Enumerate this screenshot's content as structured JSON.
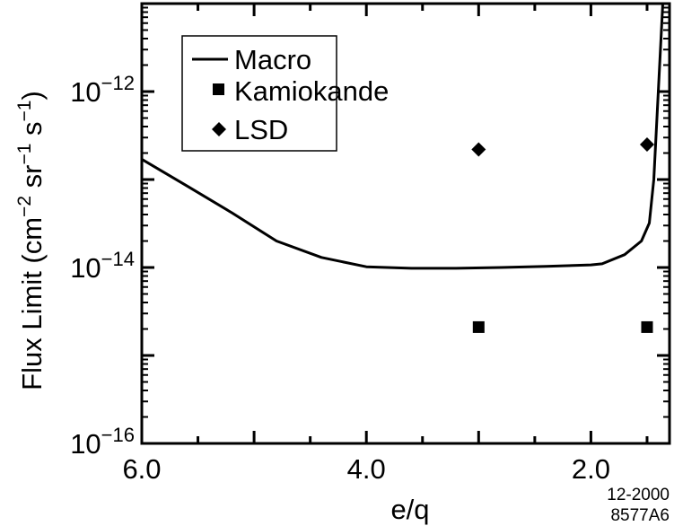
{
  "chart_data": {
    "type": "line",
    "title": "",
    "xlabel": "e/q",
    "ylabel": {
      "prefix": "Flux Limit  (cm",
      "exp1": "−2",
      "mid1": " sr",
      "exp2": "−1",
      "mid2": " s",
      "exp3": "−1",
      "suffix": ")"
    },
    "xlim": [
      6.0,
      1.3
    ],
    "x_reversed": true,
    "ylim": [
      1e-16,
      1e-11
    ],
    "yscale": "log",
    "x_ticks": [
      {
        "value": 6.0,
        "label": "6.0"
      },
      {
        "value": 4.0,
        "label": "4.0"
      },
      {
        "value": 2.0,
        "label": "2.0"
      }
    ],
    "y_ticks": [
      {
        "value": 1e-16,
        "base": "10",
        "exp": "−16"
      },
      {
        "value": 1e-14,
        "base": "10",
        "exp": "−14"
      },
      {
        "value": 1e-12,
        "base": "10",
        "exp": "−12"
      }
    ],
    "legend": {
      "position": "top-left",
      "entries": [
        {
          "label": "Macro",
          "marker": "line"
        },
        {
          "label": "Kamiokande",
          "marker": "square"
        },
        {
          "label": "LSD",
          "marker": "diamond"
        }
      ]
    },
    "series": [
      {
        "name": "Macro",
        "kind": "line",
        "points": [
          [
            6.0,
            1.7e-13
          ],
          [
            5.6,
            8.5e-14
          ],
          [
            5.2,
            4.2e-14
          ],
          [
            4.8,
            2e-14
          ],
          [
            4.4,
            1.3e-14
          ],
          [
            4.0,
            1.02e-14
          ],
          [
            3.6,
            9.8e-15
          ],
          [
            3.2,
            9.8e-15
          ],
          [
            2.8,
            1e-14
          ],
          [
            2.4,
            1.03e-14
          ],
          [
            2.0,
            1.07e-14
          ],
          [
            1.9,
            1.1e-14
          ],
          [
            1.7,
            1.4e-14
          ],
          [
            1.55,
            2e-14
          ],
          [
            1.48,
            3.2e-14
          ],
          [
            1.44,
            1e-13
          ],
          [
            1.4,
            1e-12
          ],
          [
            1.36,
            1e-11
          ]
        ]
      },
      {
        "name": "Kamiokande",
        "kind": "scatter",
        "marker": "square",
        "points": [
          [
            3.0,
            2.1e-15
          ],
          [
            1.5,
            2.1e-15
          ]
        ]
      },
      {
        "name": "LSD",
        "kind": "scatter",
        "marker": "diamond",
        "points": [
          [
            3.0,
            2.2e-13
          ],
          [
            1.5,
            2.5e-13
          ]
        ]
      }
    ]
  },
  "stamp": {
    "line1": "12-2000",
    "line2": "8577A6"
  }
}
